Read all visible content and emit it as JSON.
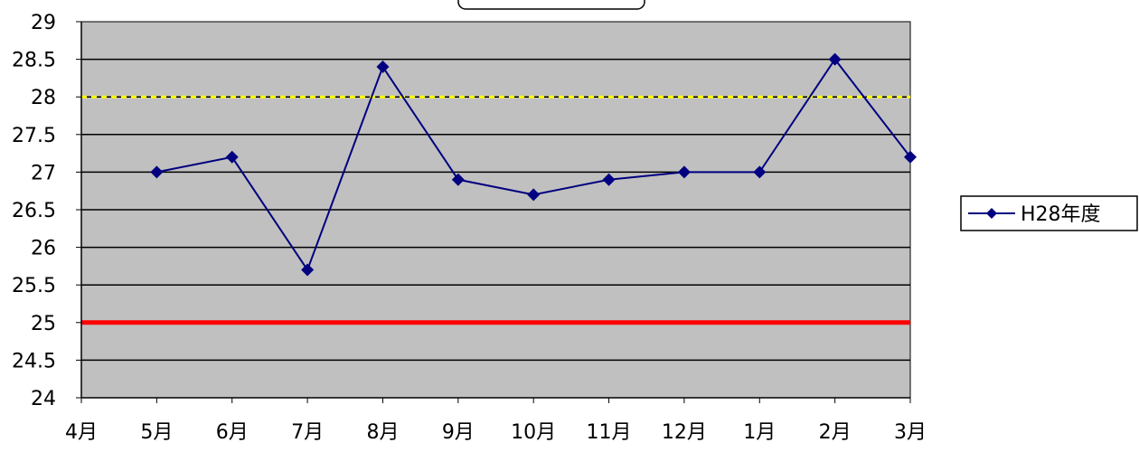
{
  "chart_data": {
    "type": "line",
    "title": "",
    "xlabel": "",
    "ylabel": "",
    "categories": [
      "4月",
      "5月",
      "6月",
      "7月",
      "8月",
      "9月",
      "10月",
      "11月",
      "12月",
      "1月",
      "2月",
      "3月"
    ],
    "x_tick_labels": [
      "4月",
      "5月",
      "6月",
      "7月",
      "8月",
      "9月",
      "10月",
      "11月",
      "12月",
      "1月",
      "2月",
      "3月"
    ],
    "y_tick_labels": [
      "24",
      "24.5",
      "25",
      "25.5",
      "26",
      "26.5",
      "27",
      "27.5",
      "28",
      "28.5",
      "29"
    ],
    "ylim": [
      24,
      29
    ],
    "y_step": 0.5,
    "grid": true,
    "series": [
      {
        "name": "H28年度",
        "color": "#000080",
        "marker": "diamond",
        "values": [
          null,
          27.0,
          27.2,
          25.7,
          28.4,
          26.9,
          26.7,
          26.9,
          27.0,
          27.0,
          28.5,
          27.2
        ]
      }
    ],
    "reference_lines": [
      {
        "value": 28,
        "color": "#ffff00",
        "style": "dashed"
      },
      {
        "value": 25,
        "color": "#ff0000",
        "style": "solid"
      }
    ],
    "legend": {
      "position": "right",
      "entries": [
        "H28年度"
      ]
    },
    "plot_background": "#c0c0c0"
  }
}
